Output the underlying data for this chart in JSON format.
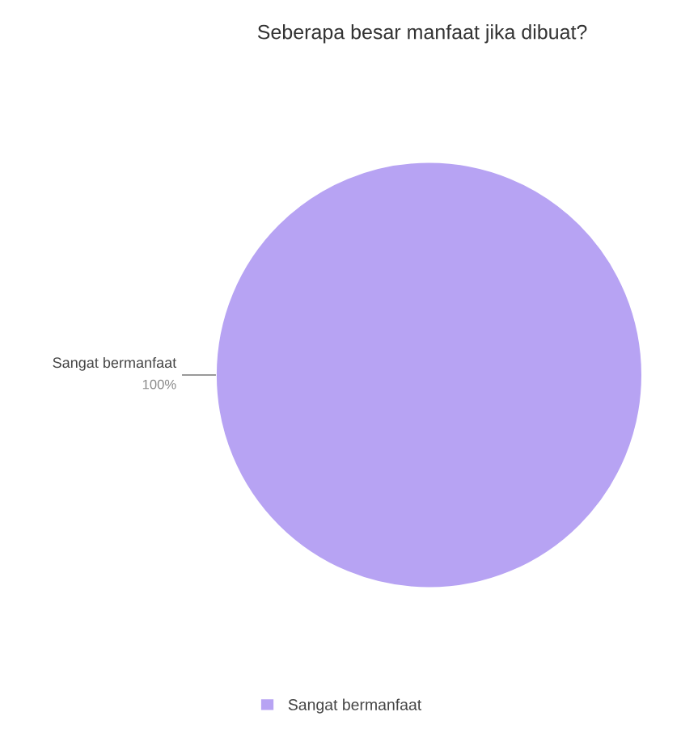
{
  "chart_data": {
    "type": "pie",
    "title": "Seberapa besar manfaat jika dibuat?",
    "categories": [
      "Sangat bermanfaat"
    ],
    "values": [
      100
    ],
    "colors": [
      "#b7a3f3"
    ],
    "value_labels": [
      "100%"
    ],
    "legend": "bottom"
  }
}
